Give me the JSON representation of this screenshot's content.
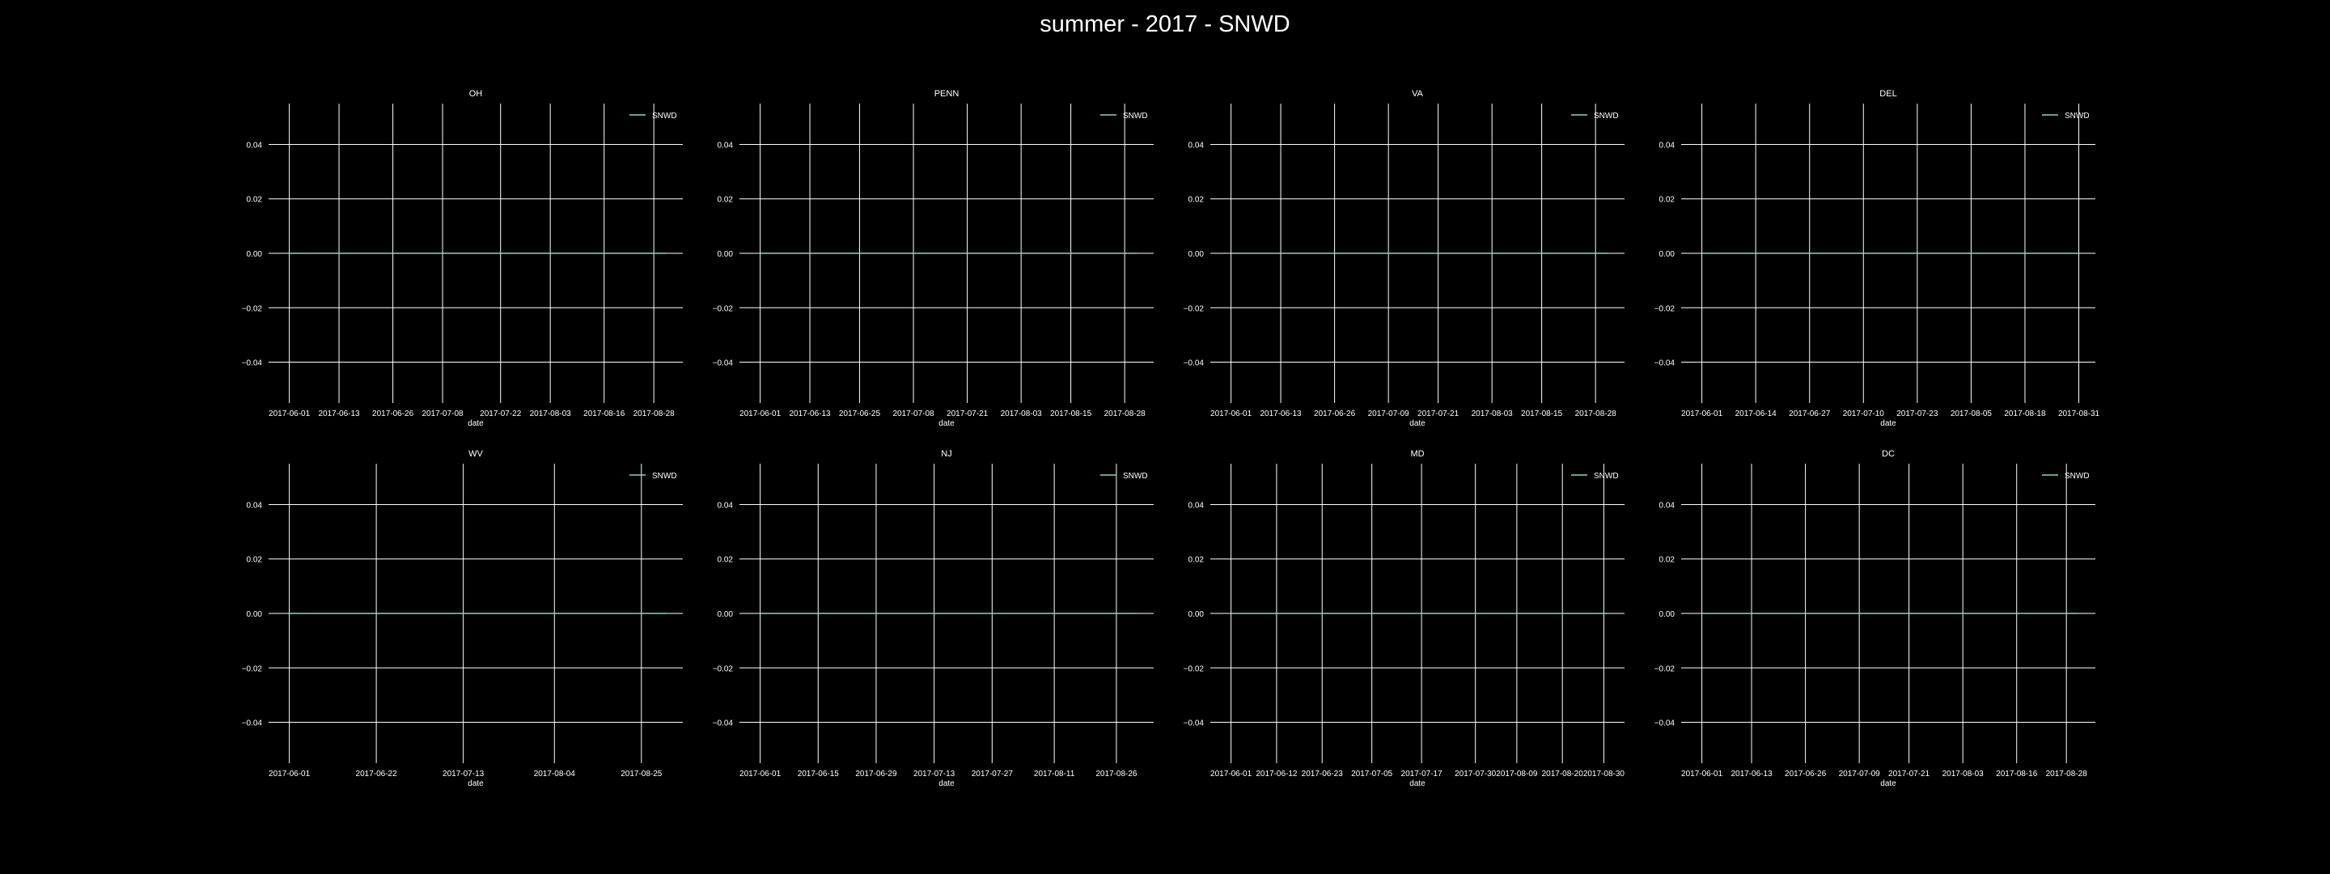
{
  "page": {
    "title": "summer - 2017 - SNWD"
  },
  "colors": {
    "background": "#000000",
    "grid": "#ffffff",
    "series": "#8dd3c7",
    "text": "#ffffff"
  },
  "chart_data": [
    {
      "type": "line",
      "title": "OH",
      "xlabel": "date",
      "ylabel": "",
      "xticks": [
        "2017-06-01",
        "2017-06-13",
        "2017-06-26",
        "2017-07-08",
        "2017-07-22",
        "2017-08-03",
        "2017-08-16",
        "2017-08-28"
      ],
      "xlim": [
        "2017-05-27",
        "2017-09-04"
      ],
      "yticks": [
        "0.04",
        "0.02",
        "0.00",
        "−0.02",
        "−0.04"
      ],
      "ylim": [
        -0.055,
        0.055
      ],
      "legend": "top-right",
      "grid": true,
      "series": [
        {
          "name": "SNWD",
          "x": [
            "2017-06-01",
            "2017-08-31"
          ],
          "values": [
            0,
            0
          ]
        }
      ]
    },
    {
      "type": "line",
      "title": "PENN",
      "xlabel": "date",
      "ylabel": "",
      "xticks": [
        "2017-06-01",
        "2017-06-13",
        "2017-06-25",
        "2017-07-08",
        "2017-07-21",
        "2017-08-03",
        "2017-08-15",
        "2017-08-28"
      ],
      "xlim": [
        "2017-05-27",
        "2017-09-04"
      ],
      "yticks": [
        "0.04",
        "0.02",
        "0.00",
        "−0.02",
        "−0.04"
      ],
      "ylim": [
        -0.055,
        0.055
      ],
      "legend": "top-right",
      "grid": true,
      "series": [
        {
          "name": "SNWD",
          "x": [
            "2017-06-01",
            "2017-08-31"
          ],
          "values": [
            0,
            0
          ]
        }
      ]
    },
    {
      "type": "line",
      "title": "VA",
      "xlabel": "date",
      "ylabel": "",
      "xticks": [
        "2017-06-01",
        "2017-06-13",
        "2017-06-26",
        "2017-07-09",
        "2017-07-21",
        "2017-08-03",
        "2017-08-15",
        "2017-08-28"
      ],
      "xlim": [
        "2017-05-27",
        "2017-09-04"
      ],
      "yticks": [
        "0.04",
        "0.02",
        "0.00",
        "−0.02",
        "−0.04"
      ],
      "ylim": [
        -0.055,
        0.055
      ],
      "legend": "top-right",
      "grid": true,
      "series": [
        {
          "name": "SNWD",
          "x": [
            "2017-06-01",
            "2017-08-31"
          ],
          "values": [
            0,
            0
          ]
        }
      ]
    },
    {
      "type": "line",
      "title": "DEL",
      "xlabel": "date",
      "ylabel": "",
      "xticks": [
        "2017-06-01",
        "2017-06-14",
        "2017-06-27",
        "2017-07-10",
        "2017-07-23",
        "2017-08-05",
        "2017-08-18",
        "2017-08-31"
      ],
      "xlim": [
        "2017-05-27",
        "2017-09-04"
      ],
      "yticks": [
        "0.04",
        "0.02",
        "0.00",
        "−0.02",
        "−0.04"
      ],
      "ylim": [
        -0.055,
        0.055
      ],
      "legend": "top-right",
      "grid": true,
      "series": [
        {
          "name": "SNWD",
          "x": [
            "2017-06-01",
            "2017-08-31"
          ],
          "values": [
            0,
            0
          ]
        }
      ]
    },
    {
      "type": "line",
      "title": "WV",
      "xlabel": "date",
      "ylabel": "",
      "xticks": [
        "2017-06-01",
        "2017-06-22",
        "2017-07-13",
        "2017-08-04",
        "2017-08-25"
      ],
      "xlim": [
        "2017-05-27",
        "2017-09-04"
      ],
      "yticks": [
        "0.04",
        "0.02",
        "0.00",
        "−0.02",
        "−0.04"
      ],
      "ylim": [
        -0.055,
        0.055
      ],
      "legend": "top-right",
      "grid": true,
      "series": [
        {
          "name": "SNWD",
          "x": [
            "2017-06-01",
            "2017-08-31"
          ],
          "values": [
            0,
            0
          ]
        }
      ]
    },
    {
      "type": "line",
      "title": "NJ",
      "xlabel": "date",
      "ylabel": "",
      "xticks": [
        "2017-06-01",
        "2017-06-15",
        "2017-06-29",
        "2017-07-13",
        "2017-07-27",
        "2017-08-11",
        "2017-08-26"
      ],
      "xlim": [
        "2017-05-27",
        "2017-09-04"
      ],
      "yticks": [
        "0.04",
        "0.02",
        "0.00",
        "−0.02",
        "−0.04"
      ],
      "ylim": [
        -0.055,
        0.055
      ],
      "legend": "top-right",
      "grid": true,
      "series": [
        {
          "name": "SNWD",
          "x": [
            "2017-06-01",
            "2017-08-31"
          ],
          "values": [
            0,
            0
          ]
        }
      ]
    },
    {
      "type": "line",
      "title": "MD",
      "xlabel": "date",
      "ylabel": "",
      "xticks": [
        "2017-06-01",
        "2017-06-12",
        "2017-06-23",
        "2017-07-05",
        "2017-07-17",
        "2017-07-30",
        "2017-08-09",
        "2017-08-20",
        "2017-08-30"
      ],
      "xlim": [
        "2017-05-27",
        "2017-09-04"
      ],
      "yticks": [
        "0.04",
        "0.02",
        "0.00",
        "−0.02",
        "−0.04"
      ],
      "ylim": [
        -0.055,
        0.055
      ],
      "legend": "top-right",
      "grid": true,
      "series": [
        {
          "name": "SNWD",
          "x": [
            "2017-06-01",
            "2017-08-31"
          ],
          "values": [
            0,
            0
          ]
        }
      ]
    },
    {
      "type": "line",
      "title": "DC",
      "xlabel": "date",
      "ylabel": "",
      "xticks": [
        "2017-06-01",
        "2017-06-13",
        "2017-06-26",
        "2017-07-09",
        "2017-07-21",
        "2017-08-03",
        "2017-08-16",
        "2017-08-28"
      ],
      "xlim": [
        "2017-05-27",
        "2017-09-04"
      ],
      "yticks": [
        "0.04",
        "0.02",
        "0.00",
        "−0.02",
        "−0.04"
      ],
      "ylim": [
        -0.055,
        0.055
      ],
      "legend": "top-right",
      "grid": true,
      "series": [
        {
          "name": "SNWD",
          "x": [
            "2017-06-01",
            "2017-08-31"
          ],
          "values": [
            0,
            0
          ]
        }
      ]
    }
  ]
}
